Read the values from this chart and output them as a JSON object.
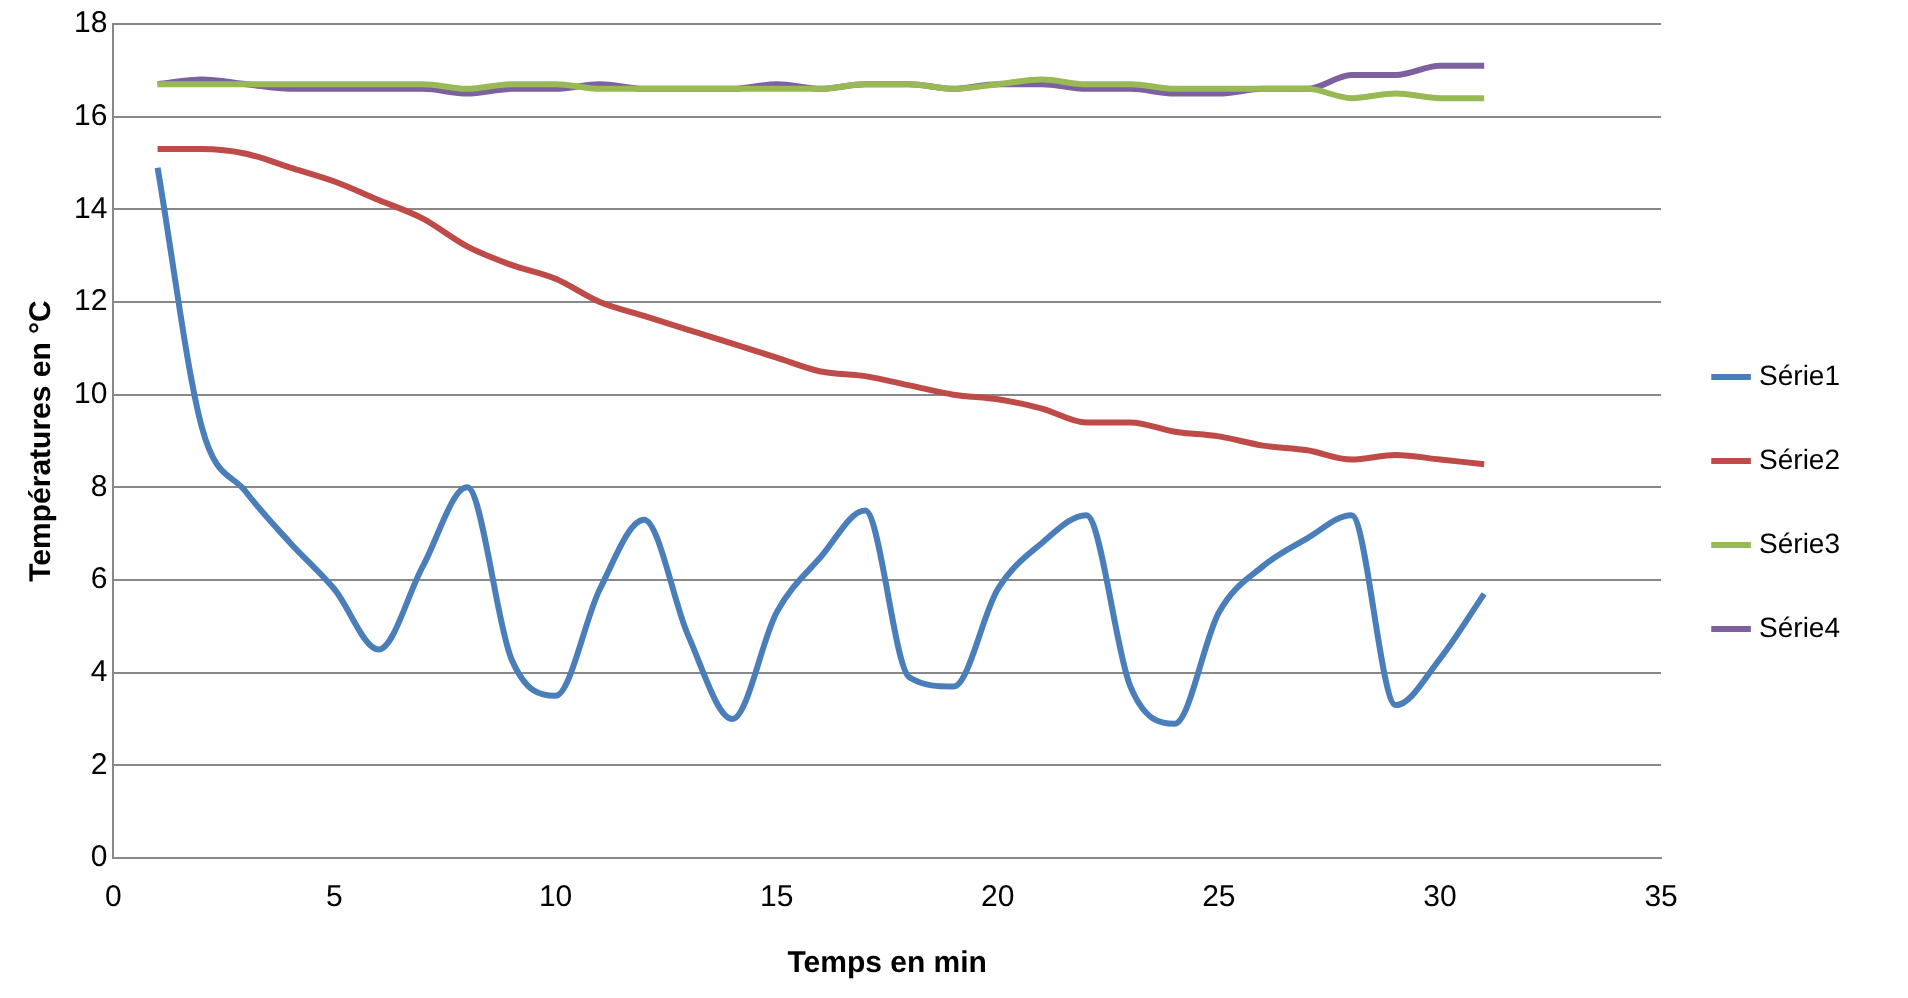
{
  "chart_data": {
    "type": "line",
    "xlabel": "Temps en min",
    "ylabel": "Températures en °C",
    "x": [
      1,
      2,
      3,
      4,
      5,
      6,
      7,
      8,
      9,
      10,
      11,
      12,
      13,
      14,
      15,
      16,
      17,
      18,
      19,
      20,
      21,
      22,
      23,
      24,
      25,
      26,
      27,
      28,
      29,
      30,
      31
    ],
    "series": [
      {
        "name": "Série1",
        "color": "#4a7ebb",
        "values": [
          14.9,
          9.3,
          7.9,
          6.8,
          5.8,
          4.5,
          6.3,
          8.0,
          4.3,
          3.5,
          5.8,
          7.3,
          4.8,
          3.0,
          5.3,
          6.5,
          7.5,
          3.9,
          3.7,
          5.8,
          6.8,
          7.4,
          3.7,
          2.9,
          5.3,
          6.3,
          6.9,
          7.4,
          3.3,
          4.3,
          5.7
        ]
      },
      {
        "name": "Série2",
        "color": "#be4b48",
        "values": [
          15.3,
          15.3,
          15.2,
          14.9,
          14.6,
          14.2,
          13.8,
          13.2,
          12.8,
          12.5,
          12.0,
          11.7,
          11.4,
          11.1,
          10.8,
          10.5,
          10.4,
          10.2,
          10.0,
          9.9,
          9.7,
          9.4,
          9.4,
          9.2,
          9.1,
          8.9,
          8.8,
          8.6,
          8.7,
          8.6,
          8.5
        ]
      },
      {
        "name": "Série3",
        "color": "#98b954",
        "values": [
          16.7,
          16.7,
          16.7,
          16.7,
          16.7,
          16.7,
          16.7,
          16.6,
          16.7,
          16.7,
          16.6,
          16.6,
          16.6,
          16.6,
          16.6,
          16.6,
          16.7,
          16.7,
          16.6,
          16.7,
          16.8,
          16.7,
          16.7,
          16.6,
          16.6,
          16.6,
          16.6,
          16.4,
          16.5,
          16.4,
          16.4
        ]
      },
      {
        "name": "Série4",
        "color": "#7d60a0",
        "values": [
          16.7,
          16.8,
          16.7,
          16.6,
          16.6,
          16.6,
          16.6,
          16.5,
          16.6,
          16.6,
          16.7,
          16.6,
          16.6,
          16.6,
          16.7,
          16.6,
          16.7,
          16.7,
          16.6,
          16.7,
          16.7,
          16.6,
          16.6,
          16.5,
          16.5,
          16.6,
          16.6,
          16.9,
          16.9,
          17.1,
          17.1
        ]
      }
    ],
    "xlim": [
      0,
      35
    ],
    "xticks": [
      0,
      5,
      10,
      15,
      20,
      25,
      30,
      35
    ],
    "ylim": [
      0,
      18
    ],
    "yticks": [
      0,
      2,
      4,
      6,
      8,
      10,
      12,
      14,
      16,
      18
    ],
    "grid": "y",
    "legend": "right",
    "marker": "none",
    "line_style": "solid"
  }
}
